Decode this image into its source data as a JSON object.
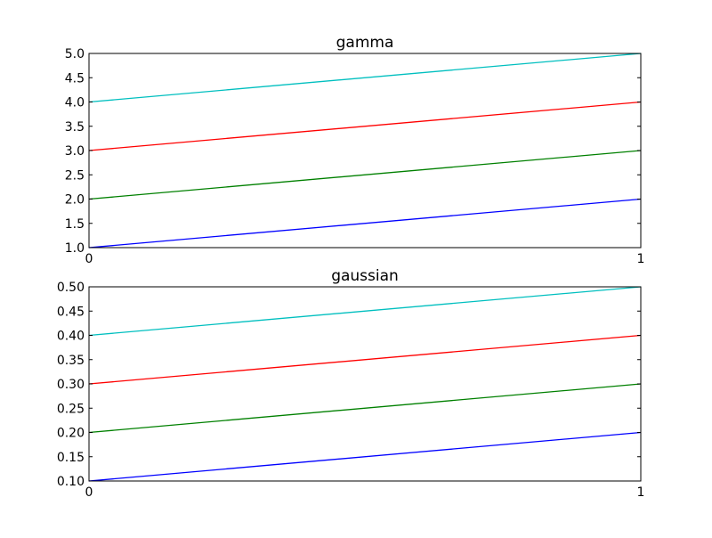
{
  "chart_data": [
    {
      "type": "line",
      "title": "gamma",
      "xlabel": "",
      "ylabel": "",
      "xlim": [
        0,
        1
      ],
      "ylim": [
        1.0,
        5.0
      ],
      "grid": false,
      "x_ticks": [
        0,
        1
      ],
      "x_tick_labels": [
        "0",
        "1"
      ],
      "y_ticks": [
        1.0,
        1.5,
        2.0,
        2.5,
        3.0,
        3.5,
        4.0,
        4.5,
        5.0
      ],
      "y_tick_labels": [
        "1.0",
        "1.5",
        "2.0",
        "2.5",
        "3.0",
        "3.5",
        "4.0",
        "4.5",
        "5.0"
      ],
      "x": [
        0,
        1
      ],
      "series": [
        {
          "values": [
            1.0,
            2.0
          ],
          "color": "#0000ff"
        },
        {
          "values": [
            2.0,
            3.0
          ],
          "color": "#008000"
        },
        {
          "values": [
            3.0,
            4.0
          ],
          "color": "#ff0000"
        },
        {
          "values": [
            4.0,
            5.0
          ],
          "color": "#00bfbf"
        }
      ]
    },
    {
      "type": "line",
      "title": "gaussian",
      "xlabel": "",
      "ylabel": "",
      "xlim": [
        0,
        1
      ],
      "ylim": [
        0.1,
        0.5
      ],
      "grid": false,
      "x_ticks": [
        0,
        1
      ],
      "x_tick_labels": [
        "0",
        "1"
      ],
      "y_ticks": [
        0.1,
        0.15,
        0.2,
        0.25,
        0.3,
        0.35,
        0.4,
        0.45,
        0.5
      ],
      "y_tick_labels": [
        "0.10",
        "0.15",
        "0.20",
        "0.25",
        "0.30",
        "0.35",
        "0.40",
        "0.45",
        "0.50"
      ],
      "x": [
        0,
        1
      ],
      "series": [
        {
          "values": [
            0.1,
            0.2
          ],
          "color": "#0000ff"
        },
        {
          "values": [
            0.2,
            0.3
          ],
          "color": "#008000"
        },
        {
          "values": [
            0.3,
            0.4
          ],
          "color": "#ff0000"
        },
        {
          "values": [
            0.4,
            0.5
          ],
          "color": "#00bfbf"
        }
      ]
    }
  ]
}
